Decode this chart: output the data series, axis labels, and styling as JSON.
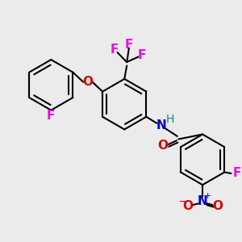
{
  "bg_color": "#ebebeb",
  "bond_color": "#000000",
  "bond_width": 1.5,
  "atom_colors": {
    "F": "#ee00ee",
    "O": "#dd0000",
    "N": "#0000cc",
    "H": "#008888"
  },
  "font_size": 11,
  "font_size_h": 10,
  "font_size_charge": 8
}
